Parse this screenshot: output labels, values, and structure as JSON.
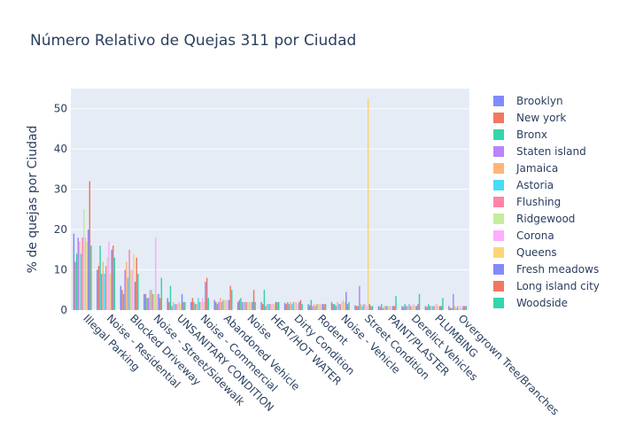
{
  "chart_data": {
    "type": "bar",
    "title": "Número Relativo de Quejas 311 por Ciudad",
    "xlabel": "",
    "ylabel": "% de quejas por Ciudad",
    "ylim": [
      0,
      55
    ],
    "yticks": [
      0,
      10,
      20,
      30,
      40,
      50
    ],
    "grid": true,
    "legend_position": "right",
    "categories": [
      "Illegal Parking",
      "Noise - Residential",
      "Blocked Driveway",
      "Noise - Street/Sidewalk",
      "UNSANITARY CONDITION",
      "Noise - Commercial",
      "Abandoned Vehicle",
      "Noise",
      "HEAT/HOT WATER",
      "Dirty Condition",
      "Rodent",
      "Noise - Vehicle",
      "Street Condition",
      "PAINT/PLASTER",
      "Derelict Vehicles",
      "PLUMBING",
      "Overgrown Tree/Branches"
    ],
    "series": [
      {
        "name": "Brooklyn",
        "color": "#636efa",
        "values": [
          19,
          10,
          6,
          4,
          3,
          2,
          2.5,
          2,
          2,
          1.8,
          1.5,
          2,
          1.2,
          1,
          1,
          1,
          1
        ]
      },
      {
        "name": "New york",
        "color": "#ef553b",
        "values": [
          12,
          11,
          5,
          4,
          2,
          3,
          2,
          2.5,
          1.5,
          1.5,
          1.2,
          1.5,
          1,
          0.8,
          0.8,
          0.8,
          0.5
        ]
      },
      {
        "name": "Bronx",
        "color": "#00cc96",
        "values": [
          14,
          16,
          4,
          3,
          6,
          2,
          1.5,
          3,
          5,
          2,
          2.5,
          1.5,
          1,
          1.5,
          1.5,
          1.5,
          0.5
        ]
      },
      {
        "name": "Staten island",
        "color": "#ab63fa",
        "values": [
          18,
          9,
          10,
          3,
          1,
          1.5,
          2,
          2,
          1,
          1.5,
          1,
          1,
          6,
          0.5,
          1,
          1,
          4
        ]
      },
      {
        "name": "Jamaica",
        "color": "#ffa15a",
        "values": [
          17,
          12,
          12,
          5,
          2,
          1.5,
          3,
          2,
          1.5,
          2,
          1.5,
          2,
          1.5,
          1,
          1,
          1,
          1
        ]
      },
      {
        "name": "Astoria",
        "color": "#19d3f3",
        "values": [
          14,
          9,
          8,
          5,
          1.5,
          3,
          2,
          2,
          1.5,
          1.5,
          1,
          1.5,
          1,
          1,
          1.5,
          1,
          0.5
        ]
      },
      {
        "name": "Flushing",
        "color": "#ff6692",
        "values": [
          18,
          11,
          15,
          4,
          1.5,
          2,
          2.5,
          2,
          1.5,
          2,
          1.5,
          1.5,
          1.5,
          1,
          1,
          1,
          1
        ]
      },
      {
        "name": "Ridgewood",
        "color": "#b6e880",
        "values": [
          25,
          13,
          10,
          4,
          1.5,
          2,
          2.5,
          2,
          1.5,
          2,
          1.5,
          2,
          1.5,
          1,
          1,
          1.5,
          0.5
        ]
      },
      {
        "name": "Corona",
        "color": "#ff97ff",
        "values": [
          18,
          17,
          10,
          18,
          2,
          3,
          2.5,
          2,
          1.5,
          2,
          1.5,
          2.5,
          1,
          1,
          1.5,
          1.5,
          1
        ]
      },
      {
        "name": "Queens",
        "color": "#fecb52",
        "values": [
          17,
          9,
          14,
          4,
          1.5,
          2,
          2.5,
          2,
          1.5,
          1.5,
          1.5,
          2,
          52.5,
          1,
          1,
          1,
          0.5
        ]
      },
      {
        "name": "Fresh meadows",
        "color": "#636efa",
        "values": [
          20,
          15,
          7,
          4,
          4,
          7,
          2.5,
          2,
          2,
          2,
          1.5,
          4.5,
          1.5,
          1,
          1,
          1,
          1
        ]
      },
      {
        "name": "Long island city",
        "color": "#ef553b",
        "values": [
          32,
          16,
          13,
          3,
          2,
          8,
          6,
          5,
          2,
          2.5,
          1.5,
          1.5,
          1,
          1,
          1.5,
          1,
          1
        ]
      },
      {
        "name": "Woodside",
        "color": "#00cc96",
        "values": [
          16,
          13,
          9,
          8,
          2,
          3,
          5,
          2,
          2,
          1.5,
          1.5,
          2,
          1,
          3.5,
          4,
          3,
          1
        ]
      }
    ]
  }
}
